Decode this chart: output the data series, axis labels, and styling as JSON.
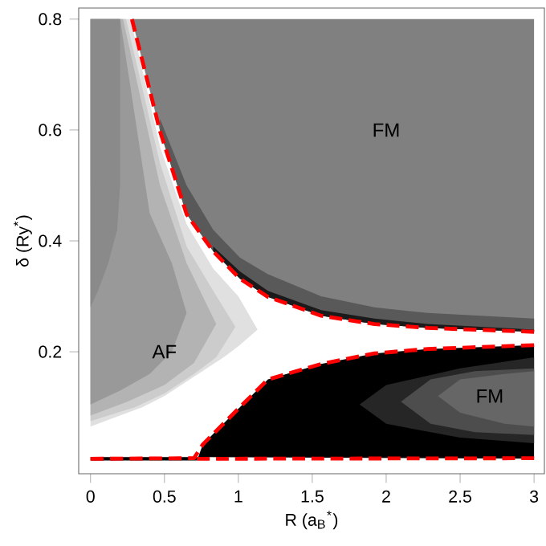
{
  "chart_data": {
    "type": "line",
    "line_style": "dashed",
    "xlabel": "R (a$_{B}$$^{*}$)",
    "ylabel": "δ (Ry$^{*}$)",
    "xlim": [
      -0.08,
      3.07
    ],
    "ylim": [
      -0.02,
      0.82
    ],
    "xticks": [
      0,
      0.5,
      1,
      1.5,
      2,
      2.5,
      3
    ],
    "yticks": [
      0.2,
      0.4,
      0.6,
      0.8
    ],
    "series": [
      {
        "color": "#ff0000",
        "x": [
          0.28,
          0.47,
          0.65,
          0.83,
          1.01,
          1.2,
          1.56,
          1.92,
          2.28,
          3
        ],
        "values": [
          0.8,
          0.598,
          0.448,
          0.381,
          0.332,
          0.299,
          0.265,
          0.25,
          0.243,
          0.236
        ]
      },
      {
        "color": "#ff0000",
        "x": [
          0,
          0.7,
          0.76,
          1.01,
          1.2,
          1.56,
          1.92,
          2.28,
          3
        ],
        "values": [
          0.007,
          0.008,
          0.033,
          0.1,
          0.15,
          0.178,
          0.197,
          0.205,
          0.212
        ]
      },
      {
        "color": "#ff0000",
        "x": [
          0.72,
          3
        ],
        "values": [
          0.007,
          0.008
        ]
      }
    ],
    "annotations": [
      "FM",
      "AF",
      "FM"
    ]
  }
}
